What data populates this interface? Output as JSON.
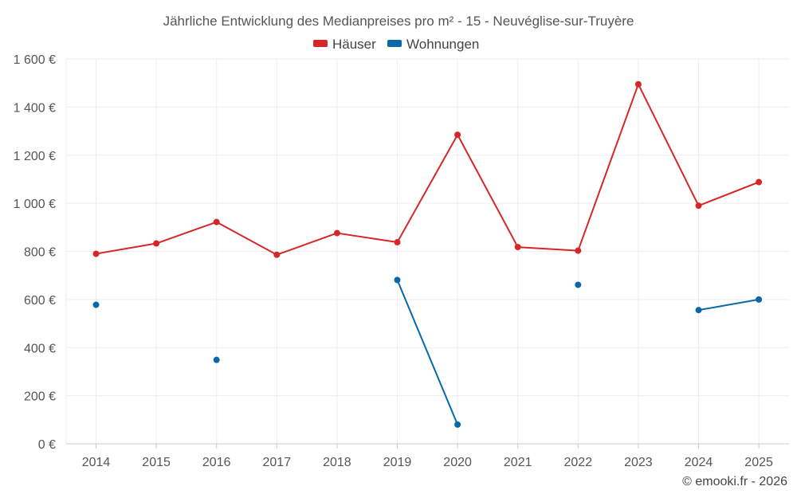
{
  "chart_data": {
    "type": "line",
    "title": "Jährliche Entwicklung des Medianpreises pro m² - 15 - Neuvéglise-sur-Truyère",
    "xlabel": "",
    "ylabel": "",
    "x": [
      "2014",
      "2015",
      "2016",
      "2017",
      "2018",
      "2019",
      "2020",
      "2021",
      "2022",
      "2023",
      "2024",
      "2025"
    ],
    "ylim": [
      0,
      1600
    ],
    "yticks": [
      0,
      200,
      400,
      600,
      800,
      1000,
      1200,
      1400,
      1600
    ],
    "ytick_labels": [
      "0 €",
      "200 €",
      "400 €",
      "600 €",
      "800 €",
      "1 000 €",
      "1 200 €",
      "1 400 €",
      "1 600 €"
    ],
    "grid": true,
    "legend_position": "top-center",
    "series": [
      {
        "name": "Häuser",
        "color": "#d62728",
        "values": [
          790,
          833,
          922,
          786,
          876,
          838,
          1285,
          818,
          803,
          1495,
          990,
          1088
        ]
      },
      {
        "name": "Wohnungen",
        "color": "#0868a8",
        "values": [
          578,
          null,
          349,
          null,
          null,
          681,
          80,
          null,
          661,
          null,
          556,
          600
        ]
      }
    ]
  },
  "footer": {
    "credit": "© emooki.fr - 2026"
  }
}
